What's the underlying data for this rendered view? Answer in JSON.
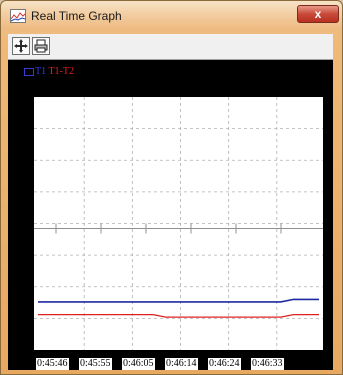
{
  "window": {
    "title": "Real Time Graph",
    "close_label": "x"
  },
  "toolbar": {
    "buttons": [
      {
        "icon": "move-arrows-icon"
      },
      {
        "icon": "printer-icon"
      }
    ]
  },
  "colors": {
    "background": "#000000",
    "plot_background": "#ffffff",
    "grid": "#b0b0b0",
    "series_t1": "#1e2aa0",
    "series_t1_t2": "#e02020"
  },
  "chart_data": {
    "type": "line",
    "legend": "top-left",
    "series": [
      {
        "name": "T1",
        "color": "#1e2aa0",
        "values": [
          0.19,
          0.19,
          0.19,
          0.19,
          0.19,
          0.19,
          0.19,
          0.19,
          0.19,
          0.19,
          0.19,
          0.19,
          0.19,
          0.19,
          0.19,
          0.19,
          0.19,
          0.19,
          0.19,
          0.19,
          0.2,
          0.2,
          0.2
        ]
      },
      {
        "name": "T1-T2",
        "color": "#e02020",
        "values": [
          0.14,
          0.14,
          0.14,
          0.14,
          0.14,
          0.14,
          0.14,
          0.14,
          0.14,
          0.14,
          0.13,
          0.13,
          0.13,
          0.13,
          0.13,
          0.13,
          0.13,
          0.13,
          0.13,
          0.13,
          0.14,
          0.14,
          0.14
        ]
      }
    ],
    "xticks": [
      "0:45:46",
      "0:45:55",
      "0:46:05",
      "0:46:14",
      "0:46:24",
      "0:46:33"
    ],
    "legend_labels": {
      "t1": "T1",
      "t1_t2": "T1-T2"
    },
    "grid": true
  }
}
